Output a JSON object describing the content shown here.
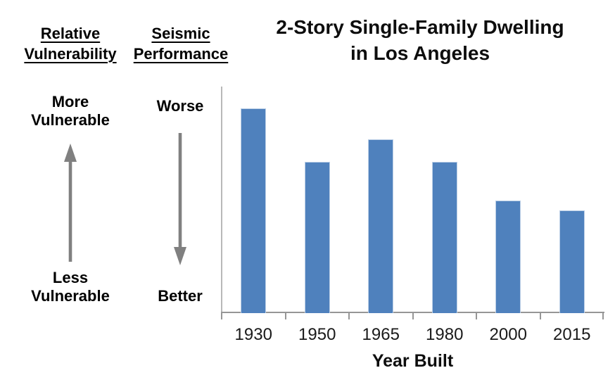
{
  "panel": {
    "vulnerability": {
      "header": [
        "Relative",
        "Vulnerability"
      ],
      "top_label": [
        "More",
        "Vulnerable"
      ],
      "bottom_label": [
        "Less",
        "Vulnerable"
      ],
      "arrow_direction": "up"
    },
    "performance": {
      "header": [
        "Seismic",
        "Performance"
      ],
      "top_label": "Worse",
      "bottom_label": "Better",
      "arrow_direction": "down"
    },
    "arrow_color": "#808080"
  },
  "chart_data": {
    "type": "bar",
    "title": "2-Story Single-Family Dwelling in Los Angeles",
    "title_lines": [
      "2-Story Single-Family Dwelling",
      "in Los Angeles"
    ],
    "categories": [
      "1930",
      "1950",
      "1965",
      "1980",
      "2000",
      "2015"
    ],
    "values": [
      100,
      74,
      85,
      74,
      55,
      50
    ],
    "value_scale": "relative bar height, tallest bar (1930) = 100; vertical axis unlabeled / qualitative (more vulnerable = taller)",
    "xlabel": "Year Built",
    "ylabel": "",
    "ylim": [
      0,
      110
    ],
    "grid": false,
    "legend": false,
    "bar_color": "#4F81BD",
    "bar_border_color": "#BCCFE6",
    "axis_color": "#969696"
  }
}
